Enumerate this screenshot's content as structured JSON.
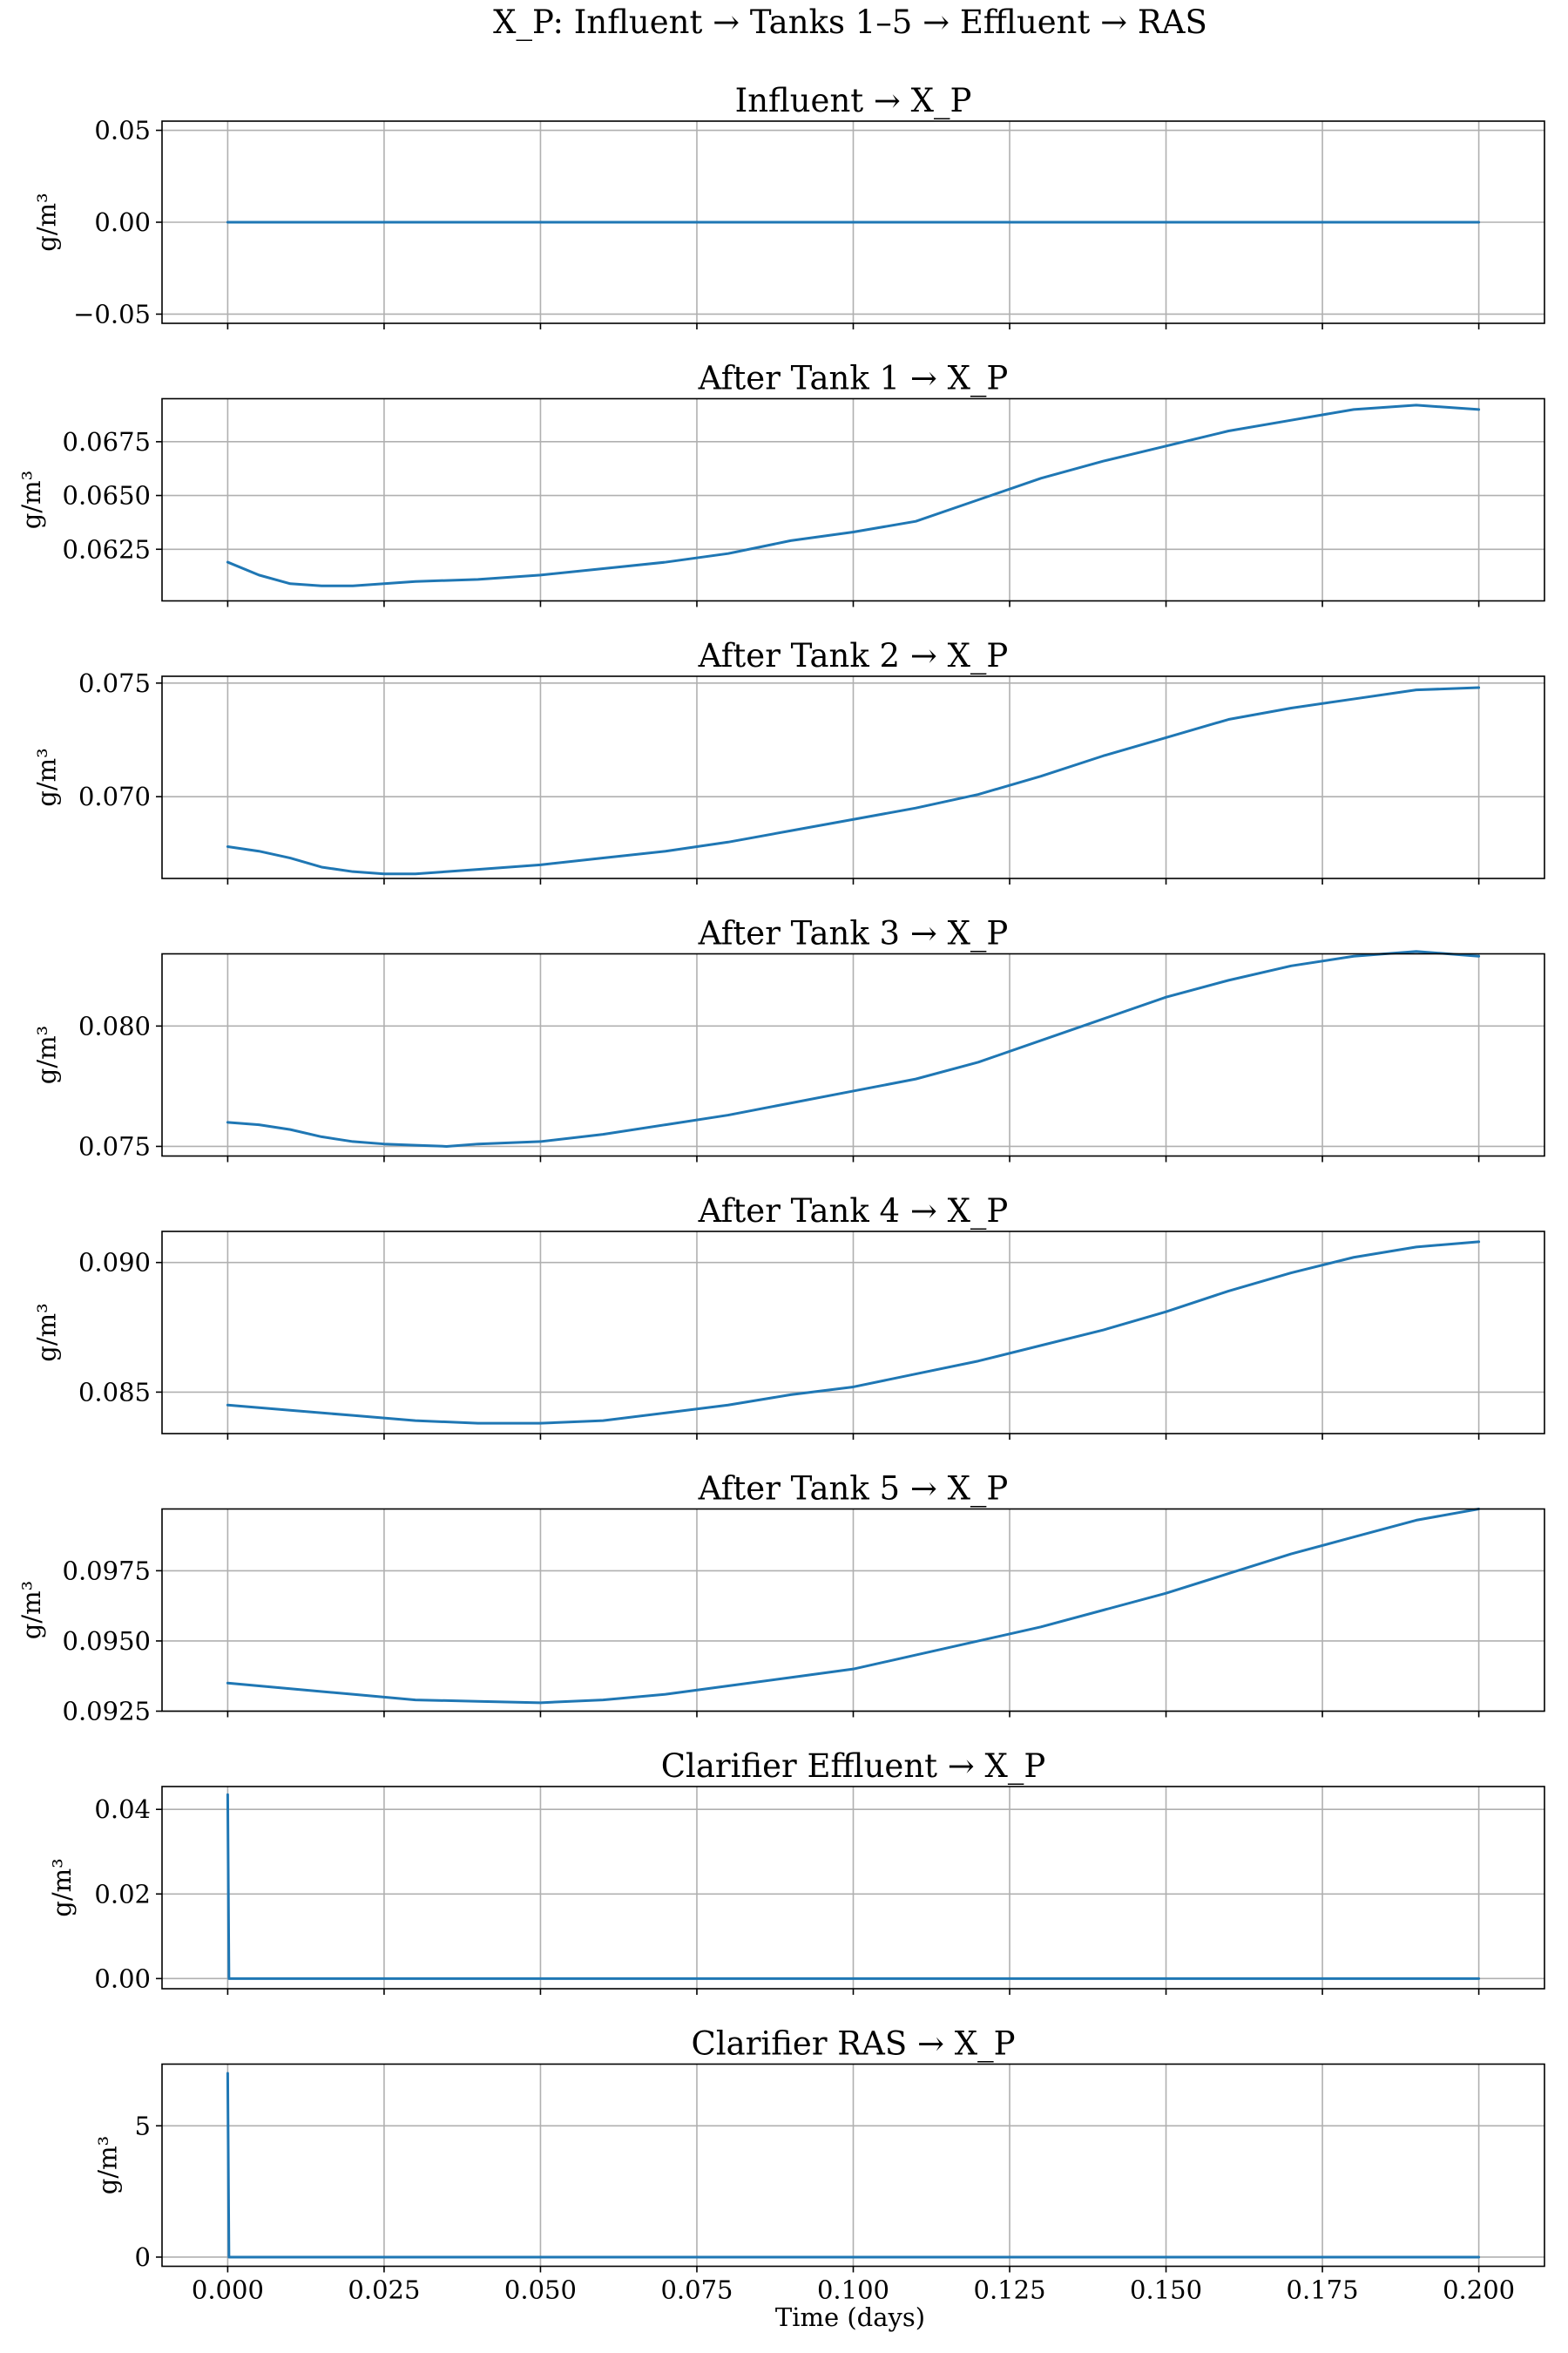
{
  "figure": {
    "suptitle": "X_P: Influent → Tanks 1–5 → Effluent → RAS",
    "xlabel": "Time (days)"
  },
  "chart_data": [
    {
      "type": "line",
      "title": "Influent → X_P",
      "ylabel": "g/m³",
      "xlim": [
        -0.0105,
        0.2105
      ],
      "ylim": [
        -0.055,
        0.055
      ],
      "xticks": [
        0.0,
        0.025,
        0.05,
        0.075,
        0.1,
        0.125,
        0.15,
        0.175,
        0.2
      ],
      "xtick_labels": [
        "0.000",
        "0.025",
        "0.050",
        "0.075",
        "0.100",
        "0.125",
        "0.150",
        "0.175",
        "0.200"
      ],
      "yticks": [
        -0.05,
        0.0,
        0.05
      ],
      "ytick_labels": [
        "−0.05",
        "0.00",
        "0.05"
      ],
      "show_xtick_labels": false,
      "grid": true,
      "color": "#1f77b4",
      "x": [
        0.0,
        0.2
      ],
      "y": [
        0.0,
        0.0
      ]
    },
    {
      "type": "line",
      "title": "After Tank 1 → X_P",
      "ylabel": "g/m³",
      "xlim": [
        -0.0105,
        0.2105
      ],
      "ylim": [
        0.0601,
        0.0695
      ],
      "xticks": [
        0.0,
        0.025,
        0.05,
        0.075,
        0.1,
        0.125,
        0.15,
        0.175,
        0.2
      ],
      "xtick_labels": [
        "0.000",
        "0.025",
        "0.050",
        "0.075",
        "0.100",
        "0.125",
        "0.150",
        "0.175",
        "0.200"
      ],
      "yticks": [
        0.0625,
        0.065,
        0.0675
      ],
      "ytick_labels": [
        "0.0625",
        "0.0650",
        "0.0675"
      ],
      "show_xtick_labels": false,
      "grid": true,
      "color": "#1f77b4",
      "x": [
        0.0,
        0.005,
        0.01,
        0.015,
        0.02,
        0.025,
        0.03,
        0.04,
        0.05,
        0.06,
        0.07,
        0.08,
        0.09,
        0.1,
        0.11,
        0.12,
        0.13,
        0.14,
        0.15,
        0.16,
        0.17,
        0.18,
        0.19,
        0.2
      ],
      "y": [
        0.0619,
        0.0613,
        0.0609,
        0.0608,
        0.0608,
        0.0609,
        0.061,
        0.0611,
        0.0613,
        0.0616,
        0.0619,
        0.0623,
        0.0629,
        0.0633,
        0.0638,
        0.0648,
        0.0658,
        0.0666,
        0.0673,
        0.068,
        0.0685,
        0.069,
        0.0692,
        0.069
      ]
    },
    {
      "type": "line",
      "title": "After Tank 2 → X_P",
      "ylabel": "g/m³",
      "xlim": [
        -0.0105,
        0.2105
      ],
      "ylim": [
        0.0664,
        0.0753
      ],
      "xticks": [
        0.0,
        0.025,
        0.05,
        0.075,
        0.1,
        0.125,
        0.15,
        0.175,
        0.2
      ],
      "xtick_labels": [
        "0.000",
        "0.025",
        "0.050",
        "0.075",
        "0.100",
        "0.125",
        "0.150",
        "0.175",
        "0.200"
      ],
      "yticks": [
        0.07,
        0.075
      ],
      "ytick_labels": [
        "0.070",
        "0.075"
      ],
      "show_xtick_labels": false,
      "grid": true,
      "color": "#1f77b4",
      "x": [
        0.0,
        0.005,
        0.01,
        0.015,
        0.02,
        0.025,
        0.03,
        0.04,
        0.05,
        0.06,
        0.07,
        0.08,
        0.09,
        0.1,
        0.11,
        0.12,
        0.13,
        0.14,
        0.15,
        0.16,
        0.17,
        0.18,
        0.19,
        0.2
      ],
      "y": [
        0.0678,
        0.0676,
        0.0673,
        0.0669,
        0.0667,
        0.0666,
        0.0666,
        0.0668,
        0.067,
        0.0673,
        0.0676,
        0.068,
        0.0685,
        0.069,
        0.0695,
        0.0701,
        0.0709,
        0.0718,
        0.0726,
        0.0734,
        0.0739,
        0.0743,
        0.0747,
        0.0748
      ]
    },
    {
      "type": "line",
      "title": "After Tank 3 → X_P",
      "ylabel": "g/m³",
      "xlim": [
        -0.0105,
        0.2105
      ],
      "ylim": [
        0.0746,
        0.083
      ],
      "xticks": [
        0.0,
        0.025,
        0.05,
        0.075,
        0.1,
        0.125,
        0.15,
        0.175,
        0.2
      ],
      "xtick_labels": [
        "0.000",
        "0.025",
        "0.050",
        "0.075",
        "0.100",
        "0.125",
        "0.150",
        "0.175",
        "0.200"
      ],
      "yticks": [
        0.075,
        0.08
      ],
      "ytick_labels": [
        "0.075",
        "0.080"
      ],
      "show_xtick_labels": false,
      "grid": true,
      "color": "#1f77b4",
      "x": [
        0.0,
        0.005,
        0.01,
        0.015,
        0.02,
        0.025,
        0.03,
        0.035,
        0.04,
        0.05,
        0.06,
        0.07,
        0.08,
        0.09,
        0.1,
        0.11,
        0.12,
        0.13,
        0.14,
        0.15,
        0.16,
        0.17,
        0.18,
        0.19,
        0.2
      ],
      "y": [
        0.076,
        0.0759,
        0.0757,
        0.0754,
        0.0752,
        0.0751,
        0.07505,
        0.075,
        0.0751,
        0.0752,
        0.0755,
        0.0759,
        0.0763,
        0.0768,
        0.0773,
        0.0778,
        0.0785,
        0.0794,
        0.0803,
        0.0812,
        0.0819,
        0.0825,
        0.0829,
        0.0831,
        0.0829
      ]
    },
    {
      "type": "line",
      "title": "After Tank 4 → X_P",
      "ylabel": "g/m³",
      "xlim": [
        -0.0105,
        0.2105
      ],
      "ylim": [
        0.0834,
        0.0912
      ],
      "xticks": [
        0.0,
        0.025,
        0.05,
        0.075,
        0.1,
        0.125,
        0.15,
        0.175,
        0.2
      ],
      "xtick_labels": [
        "0.000",
        "0.025",
        "0.050",
        "0.075",
        "0.100",
        "0.125",
        "0.150",
        "0.175",
        "0.200"
      ],
      "yticks": [
        0.085,
        0.09
      ],
      "ytick_labels": [
        "0.085",
        "0.090"
      ],
      "show_xtick_labels": false,
      "grid": true,
      "color": "#1f77b4",
      "x": [
        0.0,
        0.01,
        0.02,
        0.03,
        0.04,
        0.05,
        0.06,
        0.07,
        0.08,
        0.09,
        0.1,
        0.11,
        0.12,
        0.13,
        0.14,
        0.15,
        0.16,
        0.17,
        0.18,
        0.19,
        0.2
      ],
      "y": [
        0.0845,
        0.0843,
        0.0841,
        0.0839,
        0.0838,
        0.0838,
        0.0839,
        0.0842,
        0.0845,
        0.0849,
        0.0852,
        0.0857,
        0.0862,
        0.0868,
        0.0874,
        0.0881,
        0.0889,
        0.0896,
        0.0902,
        0.0906,
        0.0908
      ]
    },
    {
      "type": "line",
      "title": "After Tank 5 → X_P",
      "ylabel": "g/m³",
      "xlim": [
        -0.0105,
        0.2105
      ],
      "ylim": [
        0.0925,
        0.0997
      ],
      "xticks": [
        0.0,
        0.025,
        0.05,
        0.075,
        0.1,
        0.125,
        0.15,
        0.175,
        0.2
      ],
      "xtick_labels": [
        "0.000",
        "0.025",
        "0.050",
        "0.075",
        "0.100",
        "0.125",
        "0.150",
        "0.175",
        "0.200"
      ],
      "yticks": [
        0.0925,
        0.095,
        0.0975
      ],
      "ytick_labels": [
        "0.0925",
        "0.0950",
        "0.0975"
      ],
      "show_xtick_labels": false,
      "grid": true,
      "color": "#1f77b4",
      "x": [
        0.0,
        0.01,
        0.02,
        0.03,
        0.04,
        0.05,
        0.06,
        0.07,
        0.08,
        0.09,
        0.1,
        0.11,
        0.12,
        0.13,
        0.14,
        0.15,
        0.16,
        0.17,
        0.18,
        0.19,
        0.2
      ],
      "y": [
        0.0935,
        0.0933,
        0.0931,
        0.0929,
        0.09285,
        0.0928,
        0.0929,
        0.0931,
        0.0934,
        0.0937,
        0.094,
        0.0945,
        0.095,
        0.0955,
        0.0961,
        0.0967,
        0.0974,
        0.0981,
        0.0987,
        0.0993,
        0.0997
      ]
    },
    {
      "type": "line",
      "title": "Clarifier Effluent → X_P",
      "ylabel": "g/m³",
      "xlim": [
        -0.0105,
        0.2105
      ],
      "ylim": [
        -0.0024,
        0.0454
      ],
      "xticks": [
        0.0,
        0.025,
        0.05,
        0.075,
        0.1,
        0.125,
        0.15,
        0.175,
        0.2
      ],
      "xtick_labels": [
        "0.000",
        "0.025",
        "0.050",
        "0.075",
        "0.100",
        "0.125",
        "0.150",
        "0.175",
        "0.200"
      ],
      "yticks": [
        0.0,
        0.02,
        0.04
      ],
      "ytick_labels": [
        "0.00",
        "0.02",
        "0.04"
      ],
      "show_xtick_labels": false,
      "grid": true,
      "color": "#1f77b4",
      "x": [
        0.0,
        0.0002,
        0.2
      ],
      "y": [
        0.0435,
        0.0,
        0.0
      ]
    },
    {
      "type": "line",
      "title": "Clarifier RAS → X_P",
      "ylabel": "g/m³",
      "xlim": [
        -0.0105,
        0.2105
      ],
      "ylim": [
        -0.35,
        7.35
      ],
      "xticks": [
        0.0,
        0.025,
        0.05,
        0.075,
        0.1,
        0.125,
        0.15,
        0.175,
        0.2
      ],
      "xtick_labels": [
        "0.000",
        "0.025",
        "0.050",
        "0.075",
        "0.100",
        "0.125",
        "0.150",
        "0.175",
        "0.200"
      ],
      "yticks": [
        0,
        5
      ],
      "ytick_labels": [
        "0",
        "5"
      ],
      "show_xtick_labels": true,
      "grid": true,
      "color": "#1f77b4",
      "x": [
        0.0,
        0.0002,
        0.2
      ],
      "y": [
        7.0,
        0.0,
        0.0
      ]
    }
  ]
}
